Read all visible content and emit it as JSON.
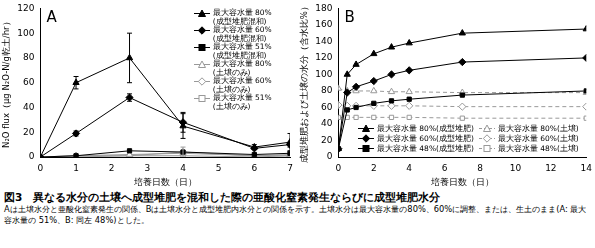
{
  "chart_data": [
    {
      "type": "line",
      "title": "A",
      "x_label": "培養日数（日）",
      "y_label": "N₂O flux（μg N₂O-N/g乾土/hr）",
      "x": [
        0,
        1,
        2.5,
        4,
        6,
        7
      ],
      "xlim": [
        0,
        7
      ],
      "xticks": [
        0,
        1,
        2,
        3,
        4,
        5,
        6,
        7
      ],
      "ylim": [
        0,
        120
      ],
      "yticks": [
        0,
        20,
        40,
        60,
        80,
        100,
        120
      ],
      "grid": false,
      "legend": "upper right",
      "series": [
        {
          "name": "最大容水量 80%(成型堆肥混和)",
          "color": "#000000",
          "marker": "triangle",
          "line_style": "solid",
          "values": [
            0,
            60,
            80,
            25,
            8,
            12
          ],
          "errors": [
            null,
            5,
            20,
            10,
            2,
            7
          ]
        },
        {
          "name": "最大容水量 60%(成型堆肥混和)",
          "color": "#000000",
          "marker": "diamond",
          "line_style": "solid",
          "values": [
            0,
            19,
            48,
            28,
            7,
            10
          ],
          "errors": [
            null,
            2,
            3,
            8,
            1,
            2
          ]
        },
        {
          "name": "最大容水量 51%(成型堆肥混和)",
          "color": "#000000",
          "marker": "square",
          "line_style": "solid",
          "values": [
            0,
            1,
            5,
            4,
            2,
            3
          ]
        },
        {
          "name": "最大容水量 80%(土壌のみ)",
          "color": "#999999",
          "marker": "triangle-open",
          "line_style": "solid",
          "values": [
            0,
            1,
            2,
            3,
            1,
            2
          ]
        },
        {
          "name": "最大容水量 60%(土壌のみ)",
          "color": "#999999",
          "marker": "diamond-open",
          "line_style": "solid",
          "values": [
            0,
            1,
            1,
            4,
            1,
            1
          ],
          "errors": [
            null,
            null,
            null,
            4,
            null,
            null
          ]
        },
        {
          "name": "最大容水量 51%(土壌のみ)",
          "color": "#999999",
          "marker": "square-open",
          "line_style": "solid",
          "values": [
            0,
            0,
            1,
            1,
            0,
            1
          ]
        }
      ]
    },
    {
      "type": "line",
      "title": "B",
      "x_label": "培養日数（日）",
      "y_label": "成型堆肥および土壌の水分（含水比%）",
      "x": [
        0,
        0.5,
        1,
        2,
        3,
        4,
        7,
        14
      ],
      "xlim": [
        0,
        14
      ],
      "xticks": [
        0,
        2,
        4,
        6,
        8,
        10,
        12,
        14
      ],
      "ylim": [
        0,
        180
      ],
      "yticks": [
        0,
        20,
        40,
        60,
        80,
        100,
        120,
        140,
        160,
        180
      ],
      "grid": false,
      "legend": "lower right",
      "series": [
        {
          "name": "最大容水量 80%(成型堆肥)",
          "color": "#000000",
          "marker": "triangle",
          "line_style": "solid",
          "values": [
            10,
            100,
            112,
            125,
            133,
            138,
            150,
            155
          ]
        },
        {
          "name": "最大容水量 60%(成型堆肥)",
          "color": "#000000",
          "marker": "diamond",
          "line_style": "solid",
          "values": [
            10,
            78,
            85,
            92,
            100,
            105,
            115,
            120
          ]
        },
        {
          "name": "最大容水量 48%(成型堆肥)",
          "color": "#000000",
          "marker": "square",
          "line_style": "solid",
          "values": [
            10,
            57,
            60,
            65,
            68,
            70,
            75,
            80
          ]
        },
        {
          "name": "最大容水量 80%(土壌)",
          "color": "#999999",
          "marker": "triangle-open",
          "line_style": "dashed",
          "values": [
            83,
            80,
            80,
            80,
            79,
            79,
            78,
            78
          ]
        },
        {
          "name": "最大容水量 60%(土壌)",
          "color": "#999999",
          "marker": "diamond-open",
          "line_style": "dashed",
          "values": [
            63,
            62,
            62,
            62,
            62,
            62,
            61,
            61
          ]
        },
        {
          "name": "最大容水量 48%(土壌)",
          "color": "#999999",
          "marker": "square-open",
          "line_style": "dashed",
          "values": [
            48,
            48,
            48,
            48,
            48,
            48,
            47,
            47
          ]
        }
      ]
    }
  ],
  "figure_caption": {
    "title": "図3　異なる水分の土壌へ成型堆肥を混和した際の亜酸化窒素発生ならびに成型堆肥水分",
    "note": "Aは土壌水分と亜酸化窒素発生の関係、Bは土壌水分と成型堆肥内水分との関係を示す。土壌水分は最大容水量の80%、60%に調整、または、生土のまま(A: 最大容水量の 51%、B: 同左 48%)とした。"
  }
}
